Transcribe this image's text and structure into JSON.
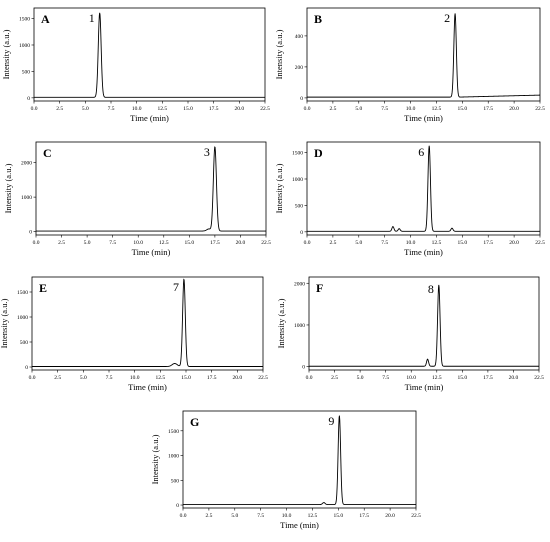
{
  "figure": {
    "colors": {
      "frame": "#000000",
      "trace": "#000000",
      "background": "#ffffff"
    },
    "panels": [
      {
        "id": "A",
        "chart_data": {
          "type": "line",
          "panel_label": "A",
          "xlabel": "Time (min)",
          "ylabel": "Intensity (a.u.)",
          "xlim": [
            0,
            22.5
          ],
          "ylim": [
            -60,
            1700
          ],
          "xticks": [
            "0.0",
            "2.5",
            "5.0",
            "7.5",
            "10.0",
            "12.5",
            "15.0",
            "17.5",
            "20.0",
            "22.5"
          ],
          "yticks": [
            "0",
            "500",
            "1000",
            "1500"
          ],
          "grid": false,
          "baseline": 10,
          "peaks": [
            {
              "label": "1",
              "t": 6.4,
              "height": 1600,
              "width": 0.14
            }
          ]
        }
      },
      {
        "id": "B",
        "chart_data": {
          "type": "line",
          "panel_label": "B",
          "xlabel": "Time (min)",
          "ylabel": "Intensity (a.u.)",
          "xlim": [
            0,
            22.5
          ],
          "ylim": [
            -20,
            580
          ],
          "xticks": [
            "0.0",
            "2.5",
            "5.0",
            "7.5",
            "10.0",
            "12.5",
            "15.0",
            "17.5",
            "20.0",
            "22.5"
          ],
          "yticks": [
            "0",
            "200",
            "400"
          ],
          "grid": false,
          "baseline": 5,
          "drift_to": 18,
          "peaks": [
            {
              "label": "2",
              "t": 14.3,
              "height": 540,
              "width": 0.12
            }
          ]
        }
      },
      {
        "id": "C",
        "chart_data": {
          "type": "line",
          "panel_label": "C",
          "xlabel": "Time (min)",
          "ylabel": "Intensity (a.u.)",
          "xlim": [
            0,
            22.5
          ],
          "ylim": [
            -100,
            2600
          ],
          "xticks": [
            "0.0",
            "2.5",
            "5.0",
            "7.5",
            "10.0",
            "12.5",
            "15.0",
            "17.5",
            "20.0",
            "22.5"
          ],
          "yticks": [
            "0",
            "1000",
            "2000"
          ],
          "grid": false,
          "baseline": 15,
          "peaks": [
            {
              "label": "3",
              "t": 17.5,
              "height": 2450,
              "width": 0.15
            },
            {
              "label": "",
              "t": 16.9,
              "height": 60,
              "width": 0.2
            }
          ]
        }
      },
      {
        "id": "D",
        "chart_data": {
          "type": "line",
          "panel_label": "D",
          "xlabel": "Time (min)",
          "ylabel": "Intensity (a.u.)",
          "xlim": [
            0,
            22.5
          ],
          "ylim": [
            -60,
            1700
          ],
          "xticks": [
            "0.0",
            "2.5",
            "5.0",
            "7.5",
            "10.0",
            "12.5",
            "15.0",
            "17.5",
            "20.0",
            "22.5"
          ],
          "yticks": [
            "0",
            "500",
            "1000",
            "1500"
          ],
          "grid": false,
          "baseline": 10,
          "peaks": [
            {
              "label": "6",
              "t": 11.8,
              "height": 1620,
              "width": 0.12
            },
            {
              "label": "",
              "t": 8.3,
              "height": 90,
              "width": 0.1
            },
            {
              "label": "",
              "t": 8.9,
              "height": 50,
              "width": 0.1
            },
            {
              "label": "",
              "t": 14.0,
              "height": 60,
              "width": 0.1
            }
          ]
        }
      },
      {
        "id": "E",
        "chart_data": {
          "type": "line",
          "panel_label": "E",
          "xlabel": "Time (min)",
          "ylabel": "Intensity (a.u.)",
          "xlim": [
            0,
            22.5
          ],
          "ylim": [
            -60,
            1800
          ],
          "xticks": [
            "0.0",
            "2.5",
            "5.0",
            "7.5",
            "10.0",
            "12.5",
            "15.0",
            "17.5",
            "20.0",
            "22.5"
          ],
          "yticks": [
            "0",
            "500",
            "1000",
            "1500"
          ],
          "grid": false,
          "baseline": 10,
          "peaks": [
            {
              "label": "7",
              "t": 14.8,
              "height": 1750,
              "width": 0.13
            },
            {
              "label": "",
              "t": 13.9,
              "height": 60,
              "width": 0.25
            }
          ]
        }
      },
      {
        "id": "F",
        "chart_data": {
          "type": "line",
          "panel_label": "F",
          "xlabel": "Time (min)",
          "ylabel": "Intensity (a.u.)",
          "xlim": [
            0,
            22.5
          ],
          "ylim": [
            -80,
            2150
          ],
          "xticks": [
            "0.0",
            "2.5",
            "5.0",
            "7.5",
            "10.0",
            "12.5",
            "15.0",
            "17.5",
            "20.0",
            "22.5"
          ],
          "yticks": [
            "0",
            "1000",
            "2000"
          ],
          "grid": false,
          "baseline": 10,
          "peaks": [
            {
              "label": "8",
              "t": 12.7,
              "height": 1950,
              "width": 0.12
            },
            {
              "label": "",
              "t": 11.6,
              "height": 170,
              "width": 0.1
            }
          ]
        }
      },
      {
        "id": "G",
        "chart_data": {
          "type": "line",
          "panel_label": "G",
          "xlabel": "Time (min)",
          "ylabel": "Intensity (a.u.)",
          "xlim": [
            0,
            22.5
          ],
          "ylim": [
            -60,
            1900
          ],
          "xticks": [
            "0.0",
            "2.5",
            "5.0",
            "7.5",
            "10.0",
            "12.5",
            "15.0",
            "17.5",
            "20.0",
            "22.5"
          ],
          "yticks": [
            "0",
            "500",
            "1000",
            "1500"
          ],
          "grid": false,
          "baseline": 10,
          "peaks": [
            {
              "label": "9",
              "t": 15.1,
              "height": 1800,
              "width": 0.12
            },
            {
              "label": "",
              "t": 13.6,
              "height": 40,
              "width": 0.12
            }
          ]
        }
      }
    ]
  }
}
